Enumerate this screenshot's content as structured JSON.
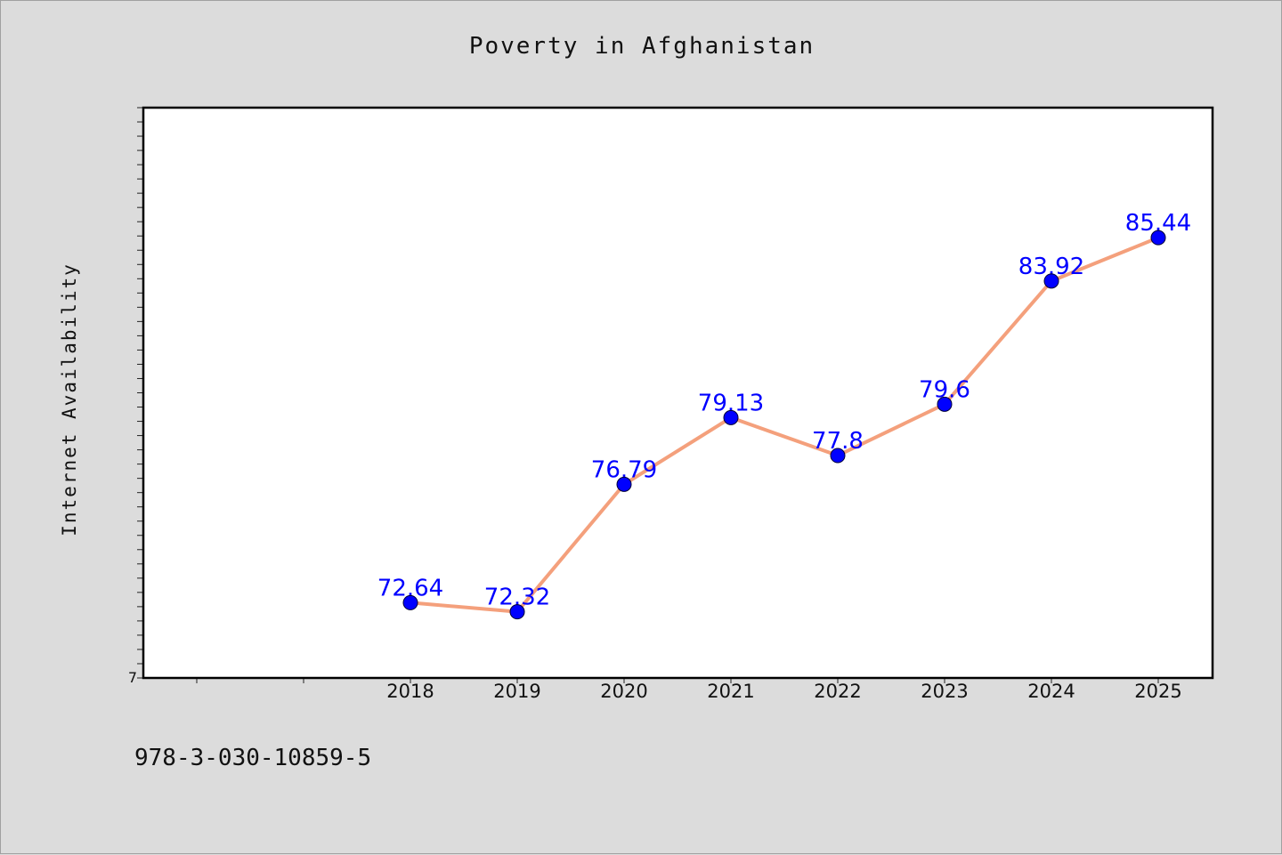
{
  "chart_data": {
    "type": "line",
    "title": "Poverty in Afghanistan",
    "xlabel": "",
    "ylabel": "Internet Availability",
    "categories": [
      "2018",
      "2019",
      "2020",
      "2021",
      "2022",
      "2023",
      "2024",
      "2025"
    ],
    "series": [
      {
        "values": [
          72.64,
          72.32,
          76.79,
          79.13,
          77.8,
          79.6,
          83.92,
          85.44
        ],
        "data_labels": [
          "72.64",
          "72.32",
          "76.79",
          "79.13",
          "77.8",
          "79.6",
          "83.92",
          "85.44"
        ]
      }
    ],
    "ylim": [
      70,
      90
    ],
    "y_tick_labels": [
      "7"
    ],
    "grid": false,
    "colors": {
      "line": "#f4a07c",
      "marker": "#0000ff",
      "data_label": "#0000ff",
      "plot_background": "#ffffff",
      "figure_background": "#dcdcdc"
    }
  },
  "footer_text": "978-3-030-10859-5"
}
